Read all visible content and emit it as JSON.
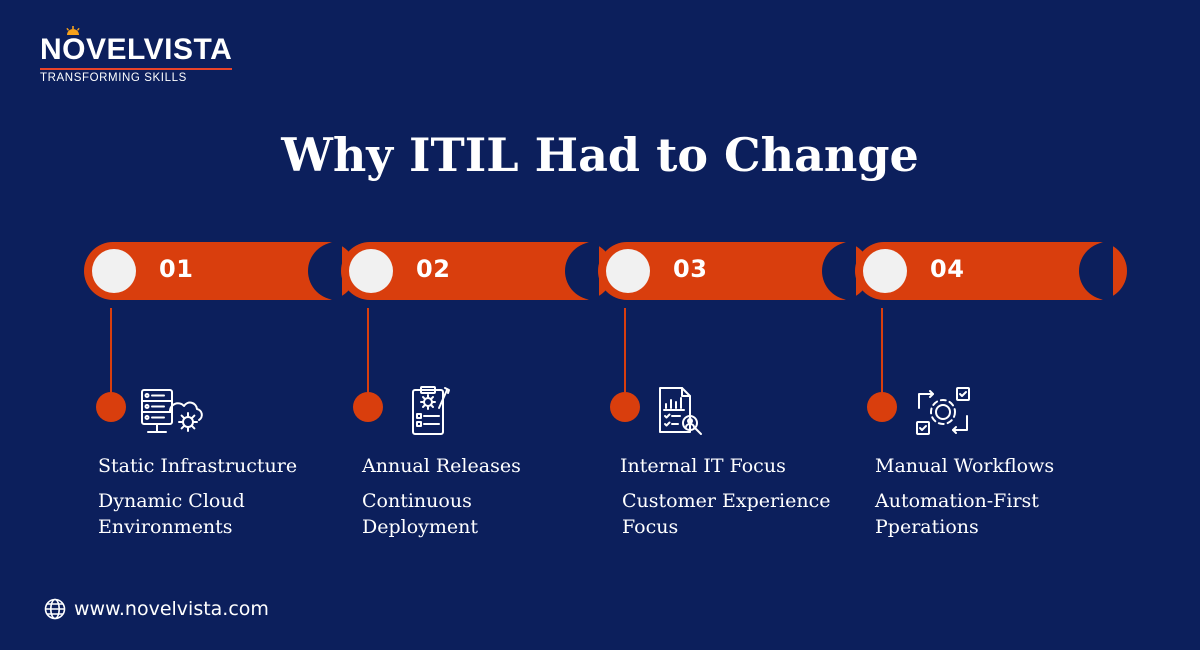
{
  "brand": {
    "name_prefix": "N",
    "name_o": "O",
    "name_suffix": "VELVISTA",
    "tagline": "TRANSFORMING SKILLS"
  },
  "title": "Why ITIL Had to Change",
  "steps": [
    {
      "number": "01",
      "old_line1": "Static Infrastructure",
      "new_line1": "Dynamic Cloud",
      "new_line2": "Environments",
      "icon": "server-cloud-gear-icon"
    },
    {
      "number": "02",
      "old_line1": "Annual Releases",
      "new_line1": "Continuous",
      "new_line2": "Deployment",
      "icon": "gear-clipboard-icon"
    },
    {
      "number": "03",
      "old_line1": "Internal IT Focus",
      "new_line1": "Customer Experience",
      "new_line2": "Focus",
      "icon": "report-magnifier-icon"
    },
    {
      "number": "04",
      "old_line1": "Manual Workflows",
      "new_line1": "Automation-First",
      "new_line2": "Pperations",
      "icon": "automation-gear-icon"
    }
  ],
  "footer": {
    "url": "www.novelvista.com",
    "icon": "globe-icon"
  },
  "colors": {
    "background": "#0c1f5c",
    "accent": "#d93e0d",
    "text": "#ffffff"
  }
}
